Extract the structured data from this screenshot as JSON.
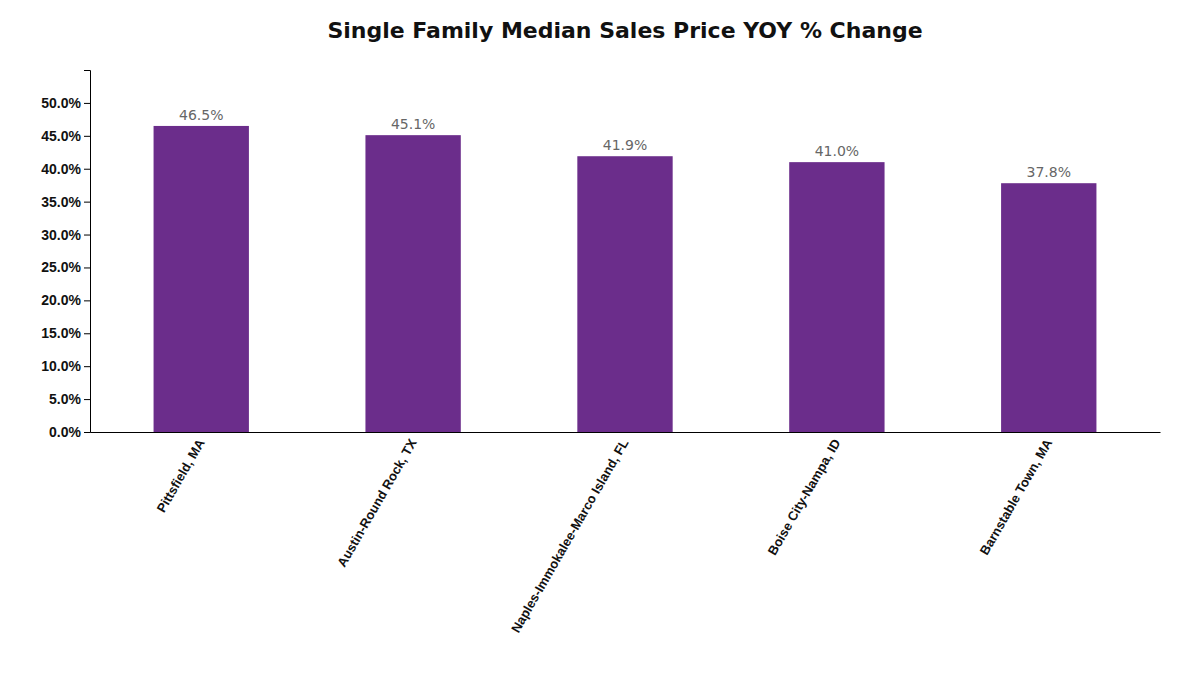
{
  "chart_data": {
    "type": "bar",
    "title": "Single Family Median Sales Price YOY % Change",
    "categories": [
      "Pittsfield, MA",
      "Austin-Round Rock, TX",
      "Naples-Immokalee-Marco Island, FL",
      "Boise City-Nampa, ID",
      "Barnstable Town, MA"
    ],
    "values": [
      46.5,
      45.1,
      41.9,
      41.0,
      37.8
    ],
    "value_labels": [
      "46.5%",
      "45.1%",
      "41.9%",
      "41.0%",
      "37.8%"
    ],
    "data_labels": true,
    "color": "#6B2D8B",
    "ylim": [
      0,
      55
    ],
    "yticks": [
      {
        "value": 0.0,
        "label": "0.0%"
      },
      {
        "value": 5.0,
        "label": "5.0%"
      },
      {
        "value": 10.0,
        "label": "10.0%"
      },
      {
        "value": 15.0,
        "label": "15.0%"
      },
      {
        "value": 20.0,
        "label": "20.0%"
      },
      {
        "value": 25.0,
        "label": "25.0%"
      },
      {
        "value": 30.0,
        "label": "30.0%"
      },
      {
        "value": 35.0,
        "label": "35.0%"
      },
      {
        "value": 40.0,
        "label": "40.0%"
      },
      {
        "value": 45.0,
        "label": "45.0%"
      },
      {
        "value": 50.0,
        "label": "50.0%"
      }
    ],
    "grid": false
  }
}
